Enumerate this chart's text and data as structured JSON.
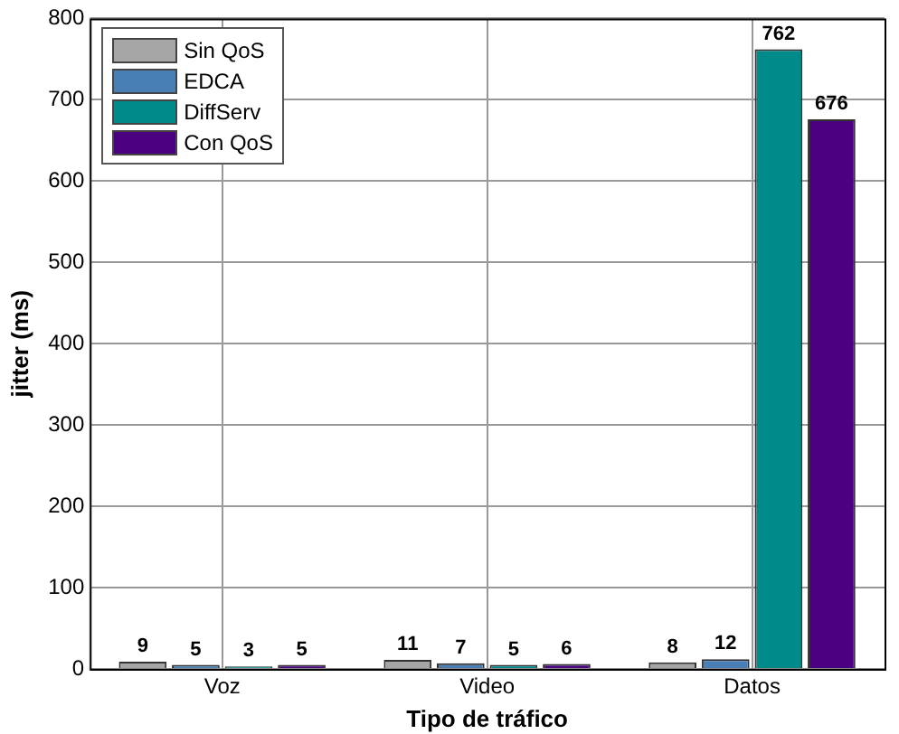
{
  "chart_data": {
    "type": "bar",
    "xlabel": "Tipo de tráfico",
    "ylabel": "jitter (ms)",
    "categories": [
      "Voz",
      "Video",
      "Datos"
    ],
    "series": [
      {
        "name": "Sin QoS",
        "color": "#a6a6a6",
        "values": [
          9,
          11,
          8
        ]
      },
      {
        "name": "EDCA",
        "color": "#4a7fb5",
        "values": [
          5,
          7,
          12
        ]
      },
      {
        "name": "DiffServ",
        "color": "#008b8b",
        "values": [
          3,
          5,
          762
        ]
      },
      {
        "name": "Con QoS",
        "color": "#4b0082",
        "values": [
          5,
          6,
          676
        ]
      }
    ],
    "ylim": [
      0,
      800
    ],
    "yticks": [
      0,
      100,
      200,
      300,
      400,
      500,
      600,
      700,
      800
    ],
    "grid": true,
    "legend": "top left",
    "data_labels": true
  }
}
